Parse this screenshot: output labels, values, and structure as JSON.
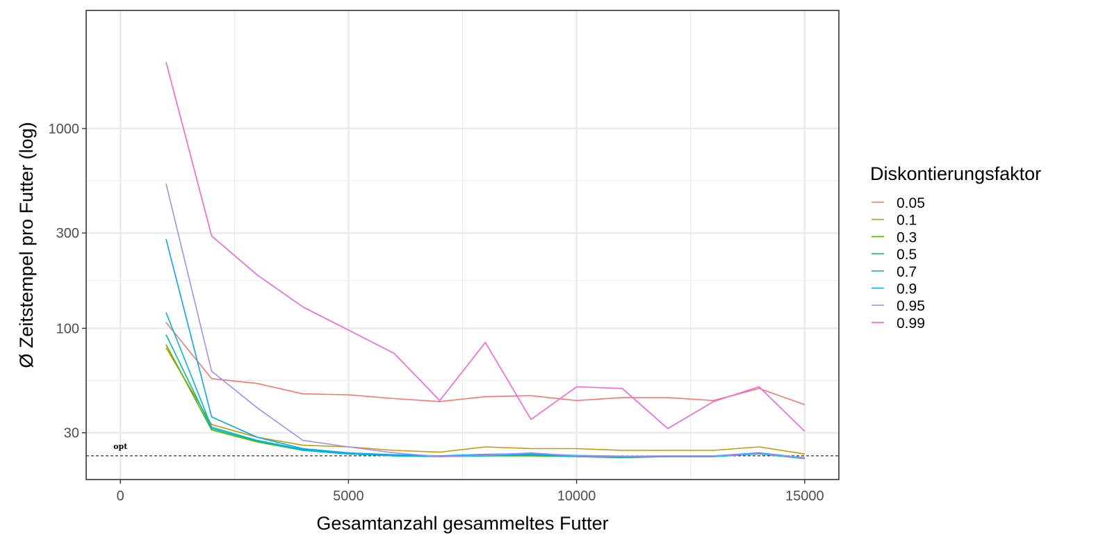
{
  "chart_data": {
    "type": "line",
    "xlabel": "Gesamtanzahl gesammeltes Futter",
    "ylabel": "Ø Zeitstempel pro Futter (log)",
    "x_scale": "linear",
    "y_scale": "log10",
    "xlim": [
      -750,
      15750
    ],
    "ylim": [
      17.5,
      3900
    ],
    "x_ticks": [
      0,
      5000,
      10000,
      15000
    ],
    "x_tick_labels": [
      "0",
      "5000",
      "10000",
      "15000"
    ],
    "y_ticks": [
      30,
      100,
      300,
      1000
    ],
    "y_tick_labels": [
      "30",
      "100",
      "300",
      "1000"
    ],
    "x_minor_ticks": [
      2500,
      7500,
      12500
    ],
    "y_minor_ticks": [
      54.8,
      173.2,
      547.7
    ],
    "grid": true,
    "legend": {
      "title": "Diskontierungsfaktor",
      "position": "right"
    },
    "reference_line": {
      "y": 23,
      "style": "dashed",
      "label": "opt",
      "label_x": 0
    },
    "x": [
      1000,
      2000,
      3000,
      4000,
      5000,
      6000,
      7000,
      8000,
      9000,
      10000,
      11000,
      12000,
      13000,
      14000,
      15000
    ],
    "series": [
      {
        "name": "0.05",
        "color": "#F8766D",
        "values": [
          107,
          56,
          53,
          47,
          46.5,
          44.5,
          43,
          45.5,
          46,
          43.5,
          45,
          45,
          43.5,
          50,
          41.5
        ]
      },
      {
        "name": "0.1",
        "color": "#C49A00",
        "values": [
          80,
          33,
          28.5,
          26,
          25.5,
          24.5,
          24,
          25.5,
          25,
          25,
          24.5,
          24.5,
          24.5,
          25.5,
          23.5
        ]
      },
      {
        "name": "0.3",
        "color": "#53B400",
        "values": [
          83,
          31,
          27,
          24.5,
          23.5,
          23,
          22.8,
          23,
          23,
          22.8,
          22.5,
          22.8,
          22.8,
          23.5,
          22.3
        ]
      },
      {
        "name": "0.5",
        "color": "#00C094",
        "values": [
          93,
          31.5,
          27.3,
          24.5,
          23.5,
          23,
          22.8,
          23,
          23.2,
          22.8,
          22.6,
          22.8,
          22.8,
          23.5,
          22.3
        ]
      },
      {
        "name": "0.7",
        "color": "#00B6EB",
        "values": [
          120,
          32,
          27.5,
          24.8,
          23.6,
          23.2,
          22.9,
          23.1,
          23.4,
          22.9,
          22.8,
          22.9,
          22.9,
          23.7,
          22.4
        ]
      },
      {
        "name": "0.9",
        "color": "#06A4FF",
        "values": [
          280,
          36,
          28.5,
          25,
          23.8,
          23.3,
          23,
          23.4,
          23.6,
          23.1,
          22.9,
          22.9,
          23,
          23.8,
          22.5
        ]
      },
      {
        "name": "0.95",
        "color": "#A58AFF",
        "values": [
          530,
          61,
          40,
          27.5,
          25.5,
          23.8,
          22.8,
          23.2,
          23.8,
          23,
          22.9,
          23,
          23,
          23.6,
          22.5
        ]
      },
      {
        "name": "0.99",
        "color": "#FB61D7",
        "values": [
          2150,
          290,
          185,
          128,
          98,
          75,
          43.5,
          85,
          35,
          51,
          50,
          31.5,
          43,
          51,
          30.5
        ]
      }
    ]
  }
}
